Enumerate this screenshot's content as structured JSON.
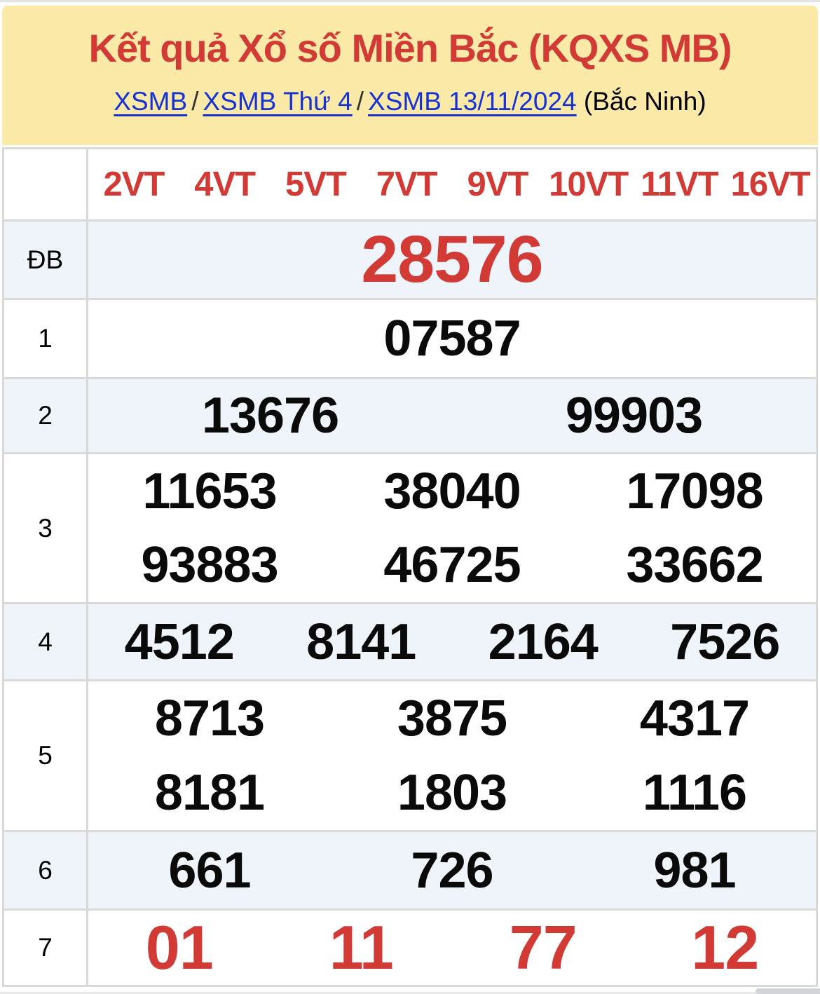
{
  "page": {
    "title": "Kết quả Xổ số Miền Bắc (KQXS MB)",
    "breadcrumb": {
      "links": [
        {
          "label": "XSMB"
        },
        {
          "label": "XSMB Thứ 4"
        },
        {
          "label": "XSMB 13/11/2024"
        }
      ],
      "separator": "/",
      "region_note": "(Bắc Ninh)"
    }
  },
  "results_table": {
    "column_headers": [
      "2VT",
      "4VT",
      "5VT",
      "7VT",
      "9VT",
      "10VT",
      "11VT",
      "16VT"
    ],
    "prize_rows": [
      {
        "label": "ĐB",
        "style": "special",
        "shaded": true,
        "lines": [
          [
            "28576"
          ]
        ]
      },
      {
        "label": "1",
        "style": "normal",
        "shaded": false,
        "lines": [
          [
            "07587"
          ]
        ]
      },
      {
        "label": "2",
        "style": "normal",
        "shaded": true,
        "lines": [
          [
            "13676",
            "99903"
          ]
        ]
      },
      {
        "label": "3",
        "style": "normal",
        "shaded": false,
        "lines": [
          [
            "11653",
            "38040",
            "17098"
          ],
          [
            "93883",
            "46725",
            "33662"
          ]
        ]
      },
      {
        "label": "4",
        "style": "normal",
        "shaded": true,
        "lines": [
          [
            "4512",
            "8141",
            "2164",
            "7526"
          ]
        ]
      },
      {
        "label": "5",
        "style": "normal",
        "shaded": false,
        "lines": [
          [
            "8713",
            "3875",
            "4317"
          ],
          [
            "8181",
            "1803",
            "1116"
          ]
        ]
      },
      {
        "label": "6",
        "style": "normal",
        "shaded": true,
        "lines": [
          [
            "661",
            "726",
            "981"
          ]
        ]
      },
      {
        "label": "7",
        "style": "last",
        "shaded": false,
        "lines": [
          [
            "01",
            "11",
            "77",
            "12"
          ]
        ]
      }
    ]
  },
  "colors": {
    "accent_red": "#d23a35",
    "link_blue": "#1632d2",
    "header_yellow": "#fae9a7",
    "shaded_row_blue": "#eff4fb",
    "table_border": "#d9d9d9"
  }
}
